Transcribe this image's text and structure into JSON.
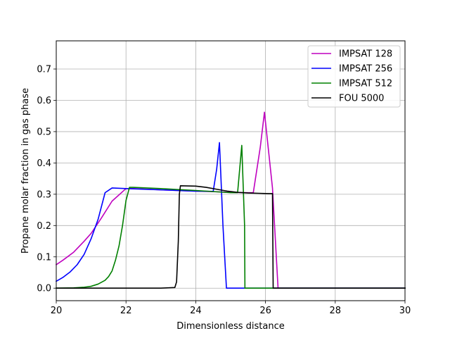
{
  "chart_data": {
    "type": "line",
    "xlabel": "Dimensionless distance",
    "ylabel": "Propane molar fraction in gas phase",
    "xlim": [
      20,
      30
    ],
    "ylim": [
      -0.04,
      0.79
    ],
    "xticks": [
      20,
      22,
      24,
      26,
      28,
      30
    ],
    "xtick_labels": [
      "20",
      "22",
      "24",
      "26",
      "28",
      "30"
    ],
    "yticks": [
      0.0,
      0.1,
      0.2,
      0.3,
      0.4,
      0.5,
      0.6,
      0.7
    ],
    "ytick_labels": [
      "0.0",
      "0.1",
      "0.2",
      "0.3",
      "0.4",
      "0.5",
      "0.6",
      "0.7"
    ],
    "grid": true,
    "legend_position": "upper right",
    "series": [
      {
        "name": "IMPSAT 128",
        "color": "#bf00bf",
        "x": [
          20.0,
          20.2,
          20.5,
          20.8,
          21.0,
          21.3,
          21.6,
          22.0,
          22.2,
          23.0,
          24.0,
          24.6,
          25.0,
          25.5,
          25.65,
          25.85,
          25.97,
          26.2,
          26.36,
          26.5,
          28.0,
          30.0
        ],
        "y": [
          0.075,
          0.09,
          0.115,
          0.15,
          0.175,
          0.225,
          0.278,
          0.318,
          0.318,
          0.314,
          0.31,
          0.308,
          0.306,
          0.305,
          0.305,
          0.45,
          0.562,
          0.32,
          0.0,
          0.0,
          0.0,
          0.0
        ]
      },
      {
        "name": "IMPSAT 256",
        "color": "#0000ff",
        "x": [
          20.0,
          20.2,
          20.4,
          20.6,
          20.8,
          21.0,
          21.2,
          21.4,
          21.6,
          22.0,
          23.0,
          24.0,
          24.5,
          24.6,
          24.68,
          24.78,
          24.88,
          25.0,
          26.0,
          28.0,
          30.0
        ],
        "y": [
          0.022,
          0.035,
          0.052,
          0.075,
          0.108,
          0.158,
          0.22,
          0.305,
          0.32,
          0.318,
          0.314,
          0.31,
          0.309,
          0.38,
          0.465,
          0.2,
          0.0,
          0.0,
          0.0,
          0.0,
          0.0
        ]
      },
      {
        "name": "IMPSAT 512",
        "color": "#008000",
        "x": [
          20.0,
          20.5,
          20.8,
          21.0,
          21.2,
          21.4,
          21.5,
          21.6,
          21.7,
          21.8,
          21.9,
          22.0,
          22.1,
          22.2,
          23.0,
          24.0,
          25.0,
          25.2,
          25.32,
          25.4,
          25.41,
          26.0,
          28.0,
          30.0
        ],
        "y": [
          0.0,
          0.001,
          0.003,
          0.006,
          0.013,
          0.025,
          0.037,
          0.055,
          0.09,
          0.135,
          0.2,
          0.28,
          0.322,
          0.322,
          0.318,
          0.312,
          0.305,
          0.305,
          0.456,
          0.2,
          0.0,
          0.0,
          0.0,
          0.0
        ]
      },
      {
        "name": "FOU 5000",
        "color": "#000000",
        "x": [
          20.0,
          22.0,
          23.0,
          23.4,
          23.45,
          23.5,
          23.53,
          23.56,
          24.0,
          24.3,
          24.6,
          24.9,
          25.2,
          25.5,
          25.8,
          26.1,
          26.2,
          26.22,
          27.0,
          28.0,
          30.0
        ],
        "y": [
          0.0,
          0.0,
          0.0,
          0.002,
          0.02,
          0.15,
          0.3,
          0.327,
          0.326,
          0.322,
          0.316,
          0.31,
          0.306,
          0.304,
          0.303,
          0.302,
          0.302,
          0.0,
          0.0,
          0.0,
          0.0
        ]
      }
    ]
  }
}
